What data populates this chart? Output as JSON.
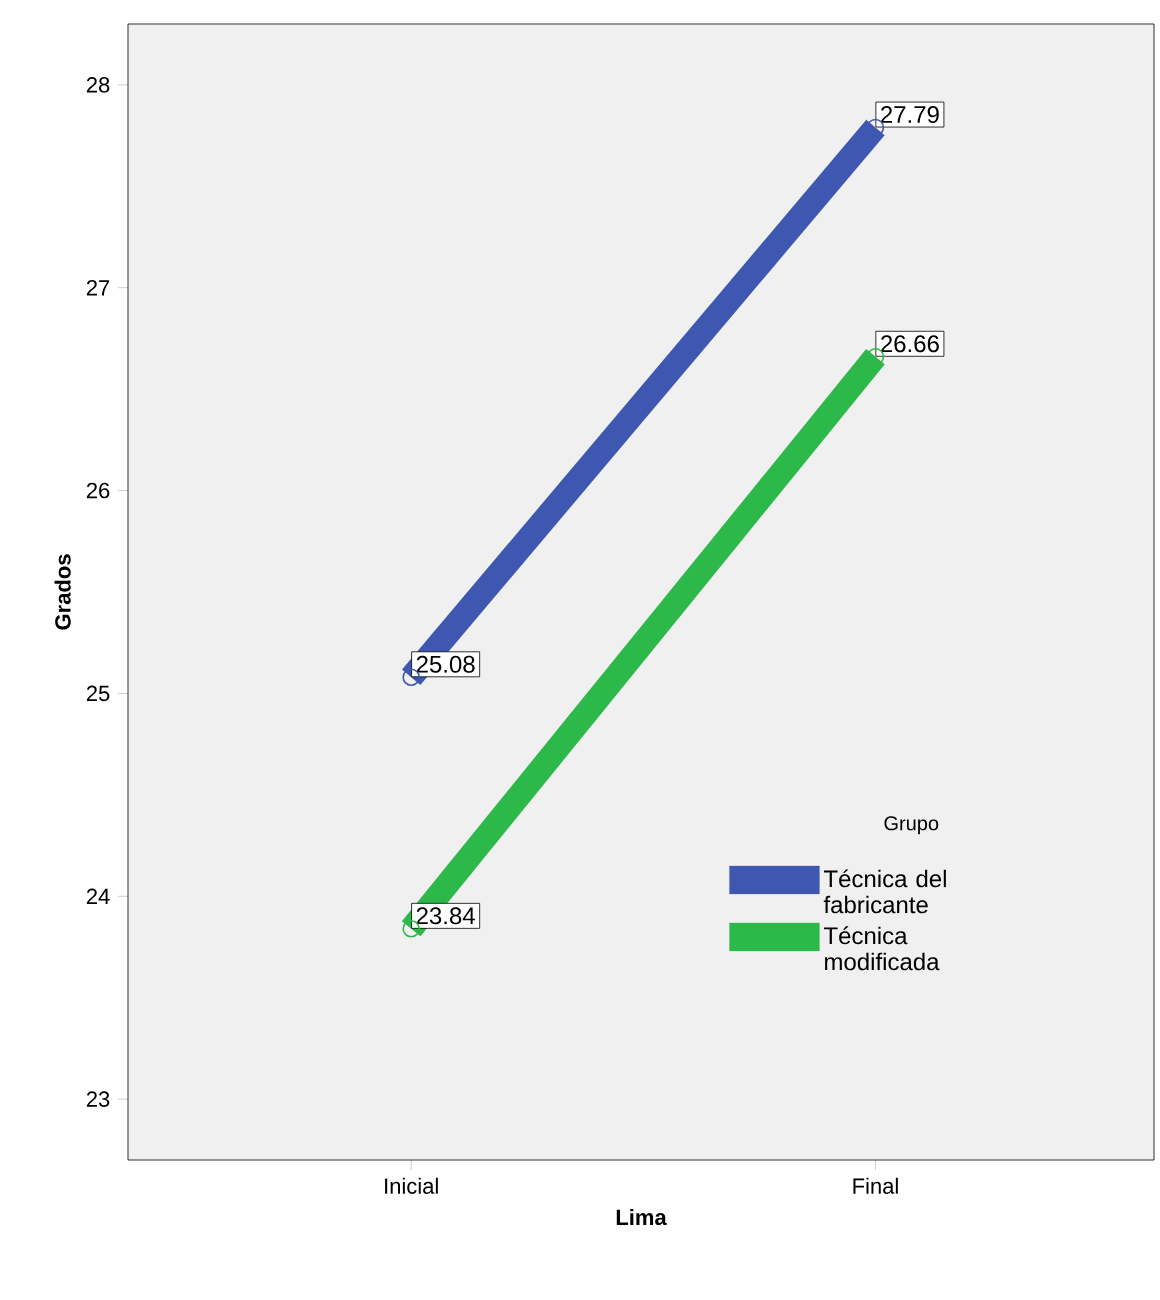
{
  "chart_data": {
    "type": "line",
    "xlabel": "Lima",
    "ylabel": "Grados",
    "legend_title": "Grupo",
    "categories": [
      "Inicial",
      "Final"
    ],
    "series": [
      {
        "name": "Técnica del fabricante",
        "color": "#3e57b0",
        "values": [
          25.08,
          27.79
        ]
      },
      {
        "name": "Técnica modificada",
        "color": "#2db84a",
        "values": [
          23.84,
          26.66
        ]
      }
    ],
    "ylim": [
      22.7,
      28.3
    ],
    "yticks": [
      23,
      24,
      25,
      26,
      27,
      28
    ],
    "grid": false,
    "legend": "right",
    "marker": "circle",
    "data_labels": true
  }
}
